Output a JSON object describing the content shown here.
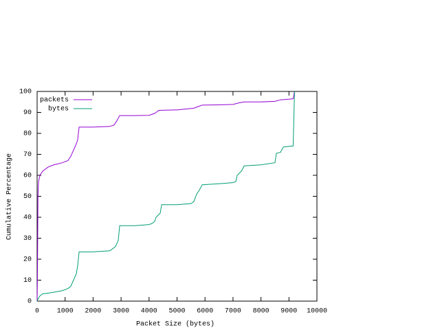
{
  "chart_data": {
    "type": "line",
    "xlabel": "Packet Size (bytes)",
    "ylabel": "Cumulative Percentage",
    "xlim": [
      0,
      10000
    ],
    "ylim": [
      0,
      100
    ],
    "xticks": [
      0,
      1000,
      2000,
      3000,
      4000,
      5000,
      6000,
      7000,
      8000,
      9000,
      10000
    ],
    "yticks": [
      0,
      10,
      20,
      30,
      40,
      50,
      60,
      70,
      80,
      90,
      100
    ],
    "legend": "top-left",
    "series": [
      {
        "name": "packets",
        "color": "#9400d3",
        "x": [
          0,
          10,
          20,
          30,
          50,
          100,
          200,
          400,
          600,
          900,
          1100,
          1200,
          1300,
          1400,
          1450,
          1500,
          2000,
          2600,
          2750,
          2850,
          2950,
          3500,
          4000,
          4200,
          4350,
          5000,
          5600,
          5800,
          5900,
          6500,
          7000,
          7200,
          7400,
          8000,
          8500,
          8700,
          9000,
          9150,
          9200
        ],
        "values": [
          0,
          10,
          30,
          50,
          57,
          60,
          62,
          64,
          65,
          66,
          67,
          69,
          72,
          75,
          77,
          83,
          83,
          83.3,
          84,
          86,
          88.5,
          88.5,
          88.6,
          89.5,
          91,
          91.2,
          92,
          93,
          93.5,
          93.6,
          93.8,
          94.5,
          95,
          95,
          95.3,
          96,
          96.3,
          96.5,
          100
        ]
      },
      {
        "name": "bytes",
        "color": "#009e73",
        "x": [
          0,
          30,
          100,
          200,
          500,
          900,
          1100,
          1200,
          1300,
          1400,
          1450,
          1500,
          2000,
          2600,
          2800,
          2900,
          2950,
          3500,
          4000,
          4100,
          4200,
          4250,
          4400,
          4450,
          5000,
          5500,
          5600,
          5700,
          5800,
          5900,
          6500,
          7000,
          7100,
          7150,
          7300,
          7400,
          8000,
          8500,
          8550,
          8700,
          8800,
          9150,
          9200
        ],
        "values": [
          0,
          1,
          2.5,
          3.5,
          4,
          5,
          6,
          7,
          10,
          13,
          17,
          23.5,
          23.5,
          24,
          26,
          29,
          36,
          36,
          36.5,
          37,
          38,
          40,
          42,
          46,
          46,
          46.5,
          47.5,
          51,
          53,
          55.5,
          56,
          56.5,
          57,
          60,
          62,
          64.5,
          65,
          66,
          70.5,
          71,
          73.5,
          74,
          100
        ]
      }
    ]
  }
}
